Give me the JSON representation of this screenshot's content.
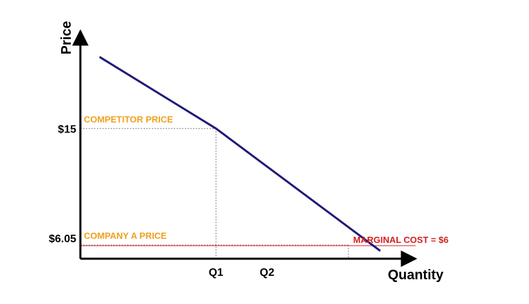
{
  "chart_data": {
    "type": "line",
    "ylabel": "Price",
    "xlabel": "Quantity",
    "x_tick_labels": [
      "Q1",
      "Q2"
    ],
    "y_tick_labels": [
      "$15",
      "$6.05"
    ],
    "annotations": {
      "competitor_price": "COMPETITOR PRICE",
      "company_a_price": "COMPANY A PRICE",
      "marginal_cost": "MARGINAL COST = $6"
    },
    "series": [
      {
        "x": [
          0.6,
          4.25,
          9.4
        ],
        "y": [
          20.5,
          15,
          5.6
        ]
      }
    ],
    "reference_lines": {
      "competitor_price": 15,
      "company_a_price": 6.05,
      "marginal_cost": 6,
      "q1": 4.25,
      "q2": 8.4
    },
    "xlim": [
      0,
      10.4
    ],
    "ylim": [
      5,
      22.5
    ],
    "colors": {
      "demand_line": "#1f1a78",
      "axis": "#000000",
      "guide_lines": "#7a7a9a",
      "price_labels": "#f0a020",
      "marginal_cost": "#d42020"
    }
  }
}
